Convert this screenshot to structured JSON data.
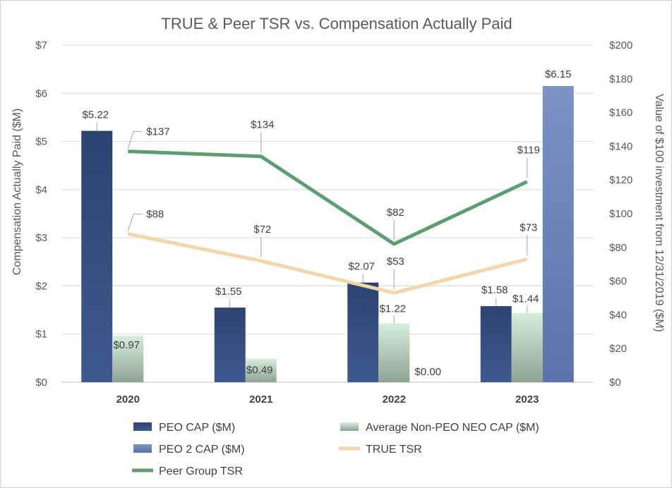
{
  "chart_data": {
    "type": "bar",
    "title": "TRUE & Peer TSR vs. Compensation Actually Paid",
    "categories": [
      "2020",
      "2021",
      "2022",
      "2023"
    ],
    "ylabel": "Compensation Actually Paid ($M)",
    "y2label": "Value of $100 investment from 12/31/2019 ($M)",
    "ylim": [
      0,
      7
    ],
    "y2lim": [
      0,
      200
    ],
    "yticks": [
      "$0",
      "$1",
      "$2",
      "$3",
      "$4",
      "$5",
      "$6",
      "$7"
    ],
    "y2ticks": [
      "$0",
      "$20",
      "$40",
      "$60",
      "$80",
      "$100",
      "$120",
      "$140",
      "$160",
      "$180",
      "$200"
    ],
    "grid": true,
    "legend_position": "bottom",
    "bar_series": [
      {
        "name": "PEO CAP ($M)",
        "values": [
          5.22,
          1.55,
          2.07,
          1.58
        ],
        "labels": [
          "$5.22",
          "$1.55",
          "$2.07",
          "$1.58"
        ],
        "color": "#2f4776"
      },
      {
        "name": "Average Non-PEO NEO CAP ($M)",
        "values": [
          0.97,
          0.49,
          1.22,
          1.44
        ],
        "labels": [
          "$0.97",
          "$0.49",
          "$1.22",
          "$1.44"
        ],
        "color": "#c3dcc9"
      },
      {
        "name": "PEO 2 CAP ($M)",
        "values": [
          null,
          null,
          0.0,
          6.15
        ],
        "labels": [
          "",
          "",
          "$0.00",
          "$6.15"
        ],
        "color": "#6c83b8"
      }
    ],
    "line_series": [
      {
        "name": "TRUE TSR",
        "axis": "right",
        "values": [
          88,
          72,
          53,
          73
        ],
        "labels": [
          "$88",
          "$72",
          "$53",
          "$73"
        ],
        "color": "#f4d6ab"
      },
      {
        "name": "Peer Group TSR",
        "axis": "right",
        "values": [
          137,
          134,
          82,
          119
        ],
        "labels": [
          "$137",
          "$134",
          "$82",
          "$119"
        ],
        "color": "#5b9e72"
      }
    ]
  }
}
